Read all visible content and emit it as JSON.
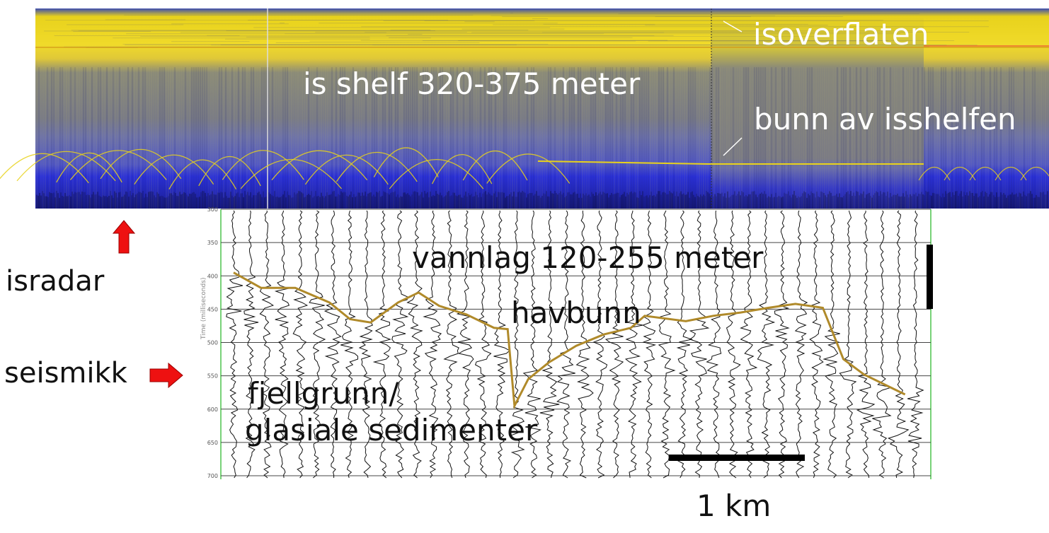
{
  "radar": {
    "label_surface": "isoverflaten",
    "label_shelf": "is shelf 320-375 meter",
    "label_bottom": "bunn av isshelfen"
  },
  "seismic": {
    "label_water": "vannlag 120-255 meter",
    "label_seabed": "havbunn",
    "label_bedrock_1": "fjellgrunn/",
    "label_bedrock_2": "glasiale sedimenter",
    "depth_ticks": [
      "300",
      "350",
      "400",
      "450",
      "500",
      "550",
      "600",
      "650",
      "700"
    ],
    "axis_label": "Time (milliseconds)",
    "seabed_profile": [
      [
        0,
        395
      ],
      [
        0.04,
        418
      ],
      [
        0.09,
        418
      ],
      [
        0.14,
        440
      ],
      [
        0.17,
        465
      ],
      [
        0.2,
        470
      ],
      [
        0.24,
        440
      ],
      [
        0.27,
        425
      ],
      [
        0.3,
        445
      ],
      [
        0.34,
        458
      ],
      [
        0.38,
        478
      ],
      [
        0.4,
        480
      ],
      [
        0.41,
        595
      ],
      [
        0.43,
        555
      ],
      [
        0.46,
        530
      ],
      [
        0.5,
        505
      ],
      [
        0.54,
        488
      ],
      [
        0.58,
        478
      ],
      [
        0.6,
        460
      ],
      [
        0.66,
        468
      ],
      [
        0.7,
        460
      ],
      [
        0.74,
        455
      ],
      [
        0.78,
        448
      ],
      [
        0.82,
        442
      ],
      [
        0.86,
        448
      ],
      [
        0.89,
        525
      ],
      [
        0.92,
        548
      ],
      [
        0.98,
        578
      ]
    ]
  },
  "scale_bar": {
    "label": "1 km"
  },
  "side_labels": {
    "radar": "isradar",
    "seismic": "seismikk"
  },
  "colors": {
    "radar_yellow": "#e8d21c",
    "radar_blue": "#2a2fd6",
    "radar_grey": "#7a7a7e",
    "seabed_line": "#b08a2a",
    "arrow_red": "#ee1111",
    "trace_green": "#4cc44c"
  }
}
